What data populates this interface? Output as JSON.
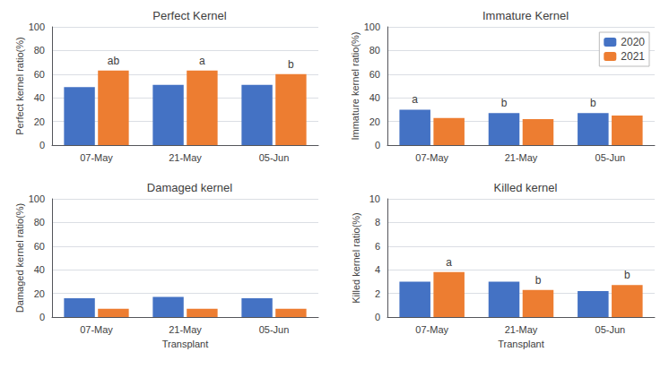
{
  "chart_data": [
    {
      "type": "bar",
      "title": "Perfect Kernel",
      "ylabel": "Perfect kernel ratio(%)",
      "categories": [
        "07-May",
        "21-May",
        "05-Jun"
      ],
      "series": [
        {
          "name": "2020",
          "color": "#4472C4",
          "values": [
            49,
            51,
            51
          ],
          "annotations": [
            null,
            null,
            null
          ]
        },
        {
          "name": "2021",
          "color": "#ED7D31",
          "values": [
            63,
            63,
            60
          ],
          "annotations": [
            "ab",
            "a",
            "b"
          ]
        }
      ],
      "ylim": [
        0,
        100
      ],
      "yticks": [
        0,
        20,
        40,
        60,
        80,
        100
      ],
      "grid": true
    },
    {
      "type": "bar",
      "title": "Immature Kernel",
      "ylabel": "Immature kernel ratio(%)",
      "categories": [
        "07-May",
        "21-May",
        "05-Jun"
      ],
      "series": [
        {
          "name": "2020",
          "color": "#4472C4",
          "values": [
            30,
            27,
            27
          ],
          "annotations": [
            "a",
            "b",
            "b"
          ]
        },
        {
          "name": "2021",
          "color": "#ED7D31",
          "values": [
            23,
            22,
            25
          ],
          "annotations": [
            null,
            null,
            null
          ]
        }
      ],
      "ylim": [
        0,
        100
      ],
      "yticks": [
        0,
        20,
        40,
        60,
        80,
        100
      ],
      "grid": true,
      "legend": "upper right"
    },
    {
      "type": "bar",
      "title": "Damaged kernel",
      "ylabel": "Damaged kernel ratio(%)",
      "xlabel": "Transplant",
      "categories": [
        "07-May",
        "21-May",
        "05-Jun"
      ],
      "series": [
        {
          "name": "2020",
          "color": "#4472C4",
          "values": [
            16,
            17,
            16
          ],
          "annotations": [
            null,
            null,
            null
          ]
        },
        {
          "name": "2021",
          "color": "#ED7D31",
          "values": [
            7,
            7,
            7
          ],
          "annotations": [
            null,
            null,
            null
          ]
        }
      ],
      "ylim": [
        0,
        100
      ],
      "yticks": [
        0,
        20,
        40,
        60,
        80,
        100
      ],
      "grid": true
    },
    {
      "type": "bar",
      "title": "Killed kernel",
      "ylabel": "Killed kernel ratio(%)",
      "xlabel": "Transplant",
      "categories": [
        "07-May",
        "21-May",
        "05-Jun"
      ],
      "series": [
        {
          "name": "2020",
          "color": "#4472C4",
          "values": [
            3.0,
            3.0,
            2.2
          ],
          "annotations": [
            null,
            null,
            null
          ]
        },
        {
          "name": "2021",
          "color": "#ED7D31",
          "values": [
            3.8,
            2.3,
            2.7
          ],
          "annotations": [
            "a",
            "b",
            "b"
          ]
        }
      ],
      "ylim": [
        0,
        10
      ],
      "yticks": [
        0,
        2,
        4,
        6,
        8,
        10
      ],
      "grid": true
    }
  ]
}
